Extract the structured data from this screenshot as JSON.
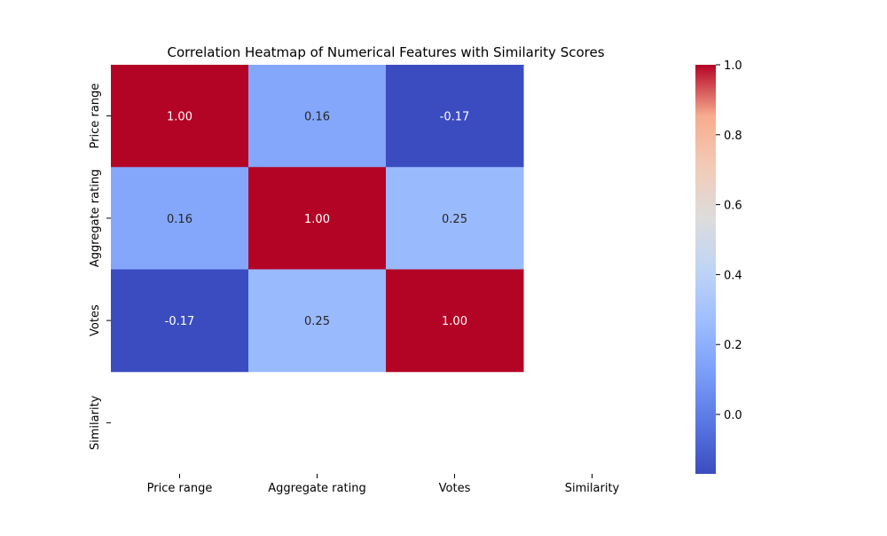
{
  "chart_data": {
    "type": "heatmap",
    "title": "Correlation Heatmap of Numerical Features with Similarity Scores",
    "xlabel": "",
    "ylabel": "",
    "x_categories": [
      "Price range",
      "Aggregate rating",
      "Votes",
      "Similarity"
    ],
    "y_categories": [
      "Price range",
      "Aggregate rating",
      "Votes",
      "Similarity"
    ],
    "values": [
      [
        1.0,
        0.16,
        -0.17,
        null
      ],
      [
        0.16,
        1.0,
        0.25,
        null
      ],
      [
        -0.17,
        0.25,
        1.0,
        null
      ],
      [
        null,
        null,
        null,
        null
      ]
    ],
    "annotation_format": "2 decimals",
    "colormap": "coolwarm",
    "color_range": [
      -0.17,
      1.0
    ],
    "colorbar": {
      "ticks": [
        0.0,
        0.2,
        0.4,
        0.6,
        0.8,
        1.0
      ],
      "tick_labels": [
        "0.0",
        "0.2",
        "0.4",
        "0.6",
        "0.8",
        "1.0"
      ]
    },
    "grid": false,
    "missing_cell_color": "#ffffff"
  }
}
